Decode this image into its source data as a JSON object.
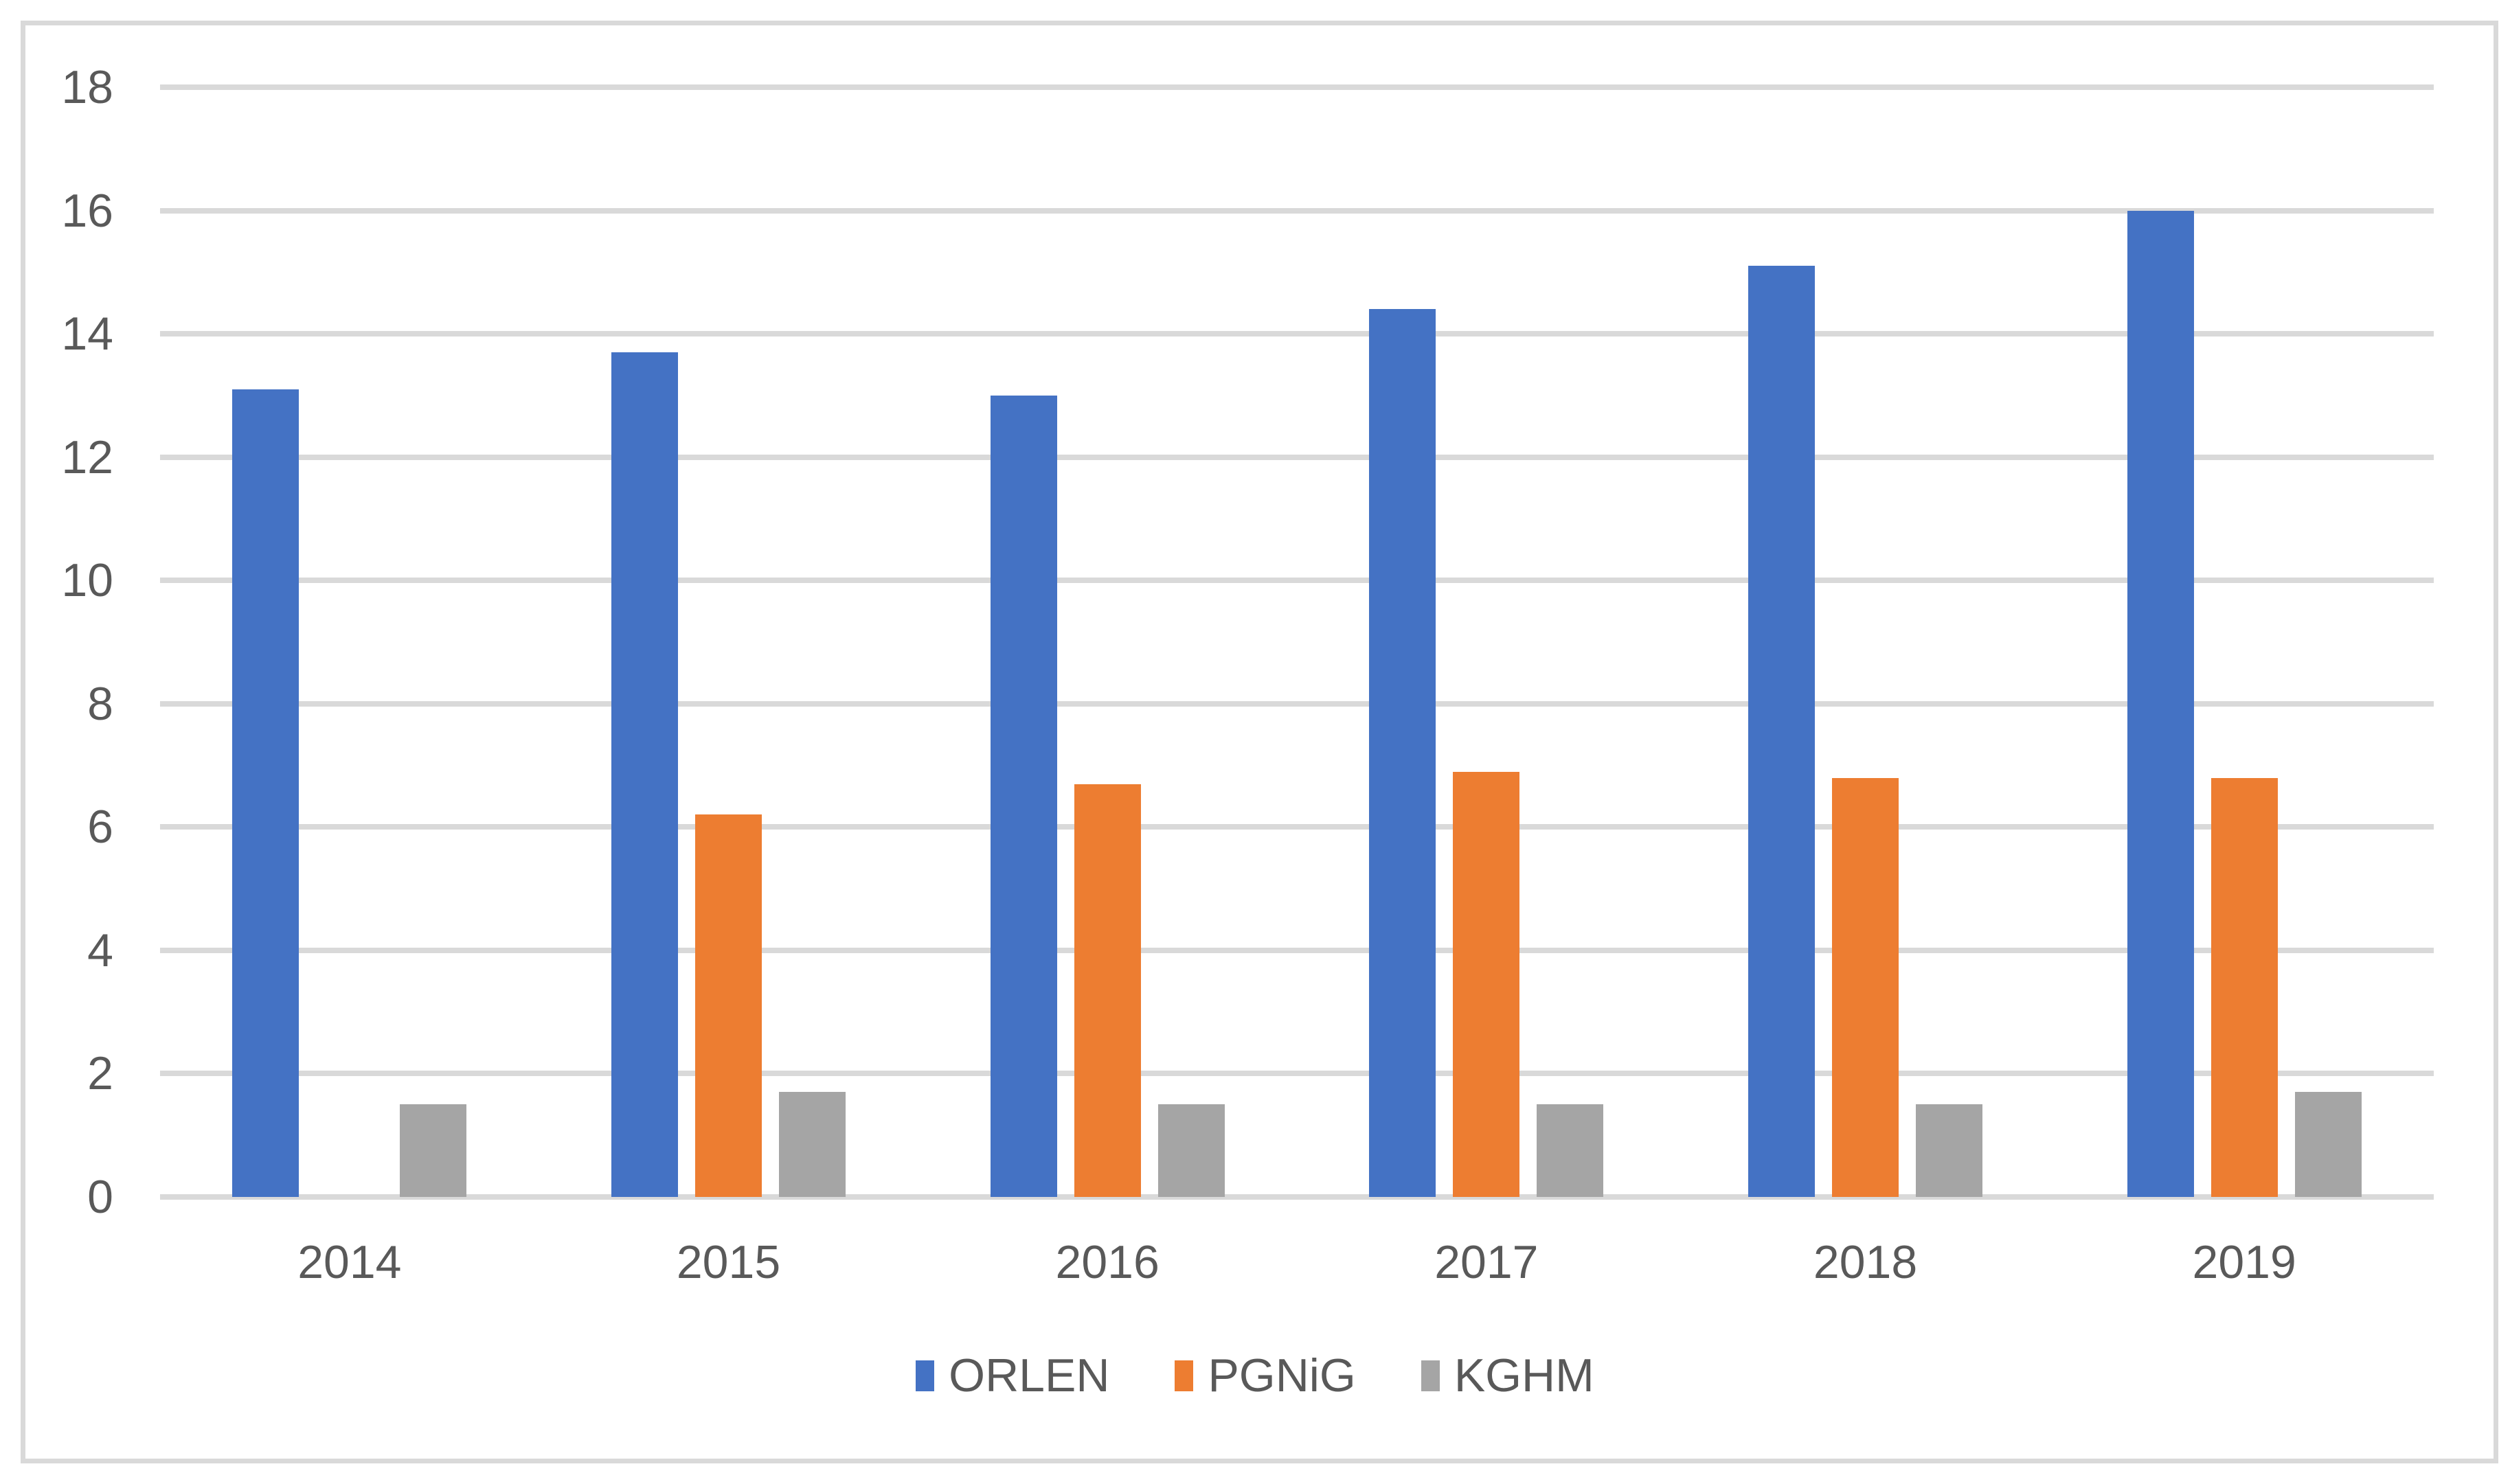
{
  "chart_data": {
    "type": "bar",
    "title": "",
    "categories": [
      "2014",
      "2015",
      "2016",
      "2017",
      "2018",
      "2019"
    ],
    "series": [
      {
        "name": "ORLEN",
        "color": "#4472c4",
        "values": [
          13.1,
          13.7,
          13.0,
          14.4,
          15.1,
          16.0
        ]
      },
      {
        "name": "PGNiG",
        "color": "#ed7d31",
        "values": [
          null,
          6.2,
          6.7,
          6.9,
          6.8,
          6.8
        ]
      },
      {
        "name": "KGHM",
        "color": "#a5a5a5",
        "values": [
          1.5,
          1.7,
          1.5,
          1.5,
          1.5,
          1.7
        ]
      }
    ],
    "xlabel": "",
    "ylabel": "",
    "y_axis": {
      "min": 0,
      "max": 18,
      "step": 2,
      "tick_labels": [
        "0",
        "2",
        "4",
        "6",
        "8",
        "10",
        "12",
        "14",
        "16",
        "18"
      ]
    },
    "grid": true,
    "legend_position": "bottom",
    "colors": {
      "gridline": "#d9d9d9",
      "frame_border": "#d9d9d9",
      "text": "#595959",
      "background": "#ffffff"
    }
  }
}
